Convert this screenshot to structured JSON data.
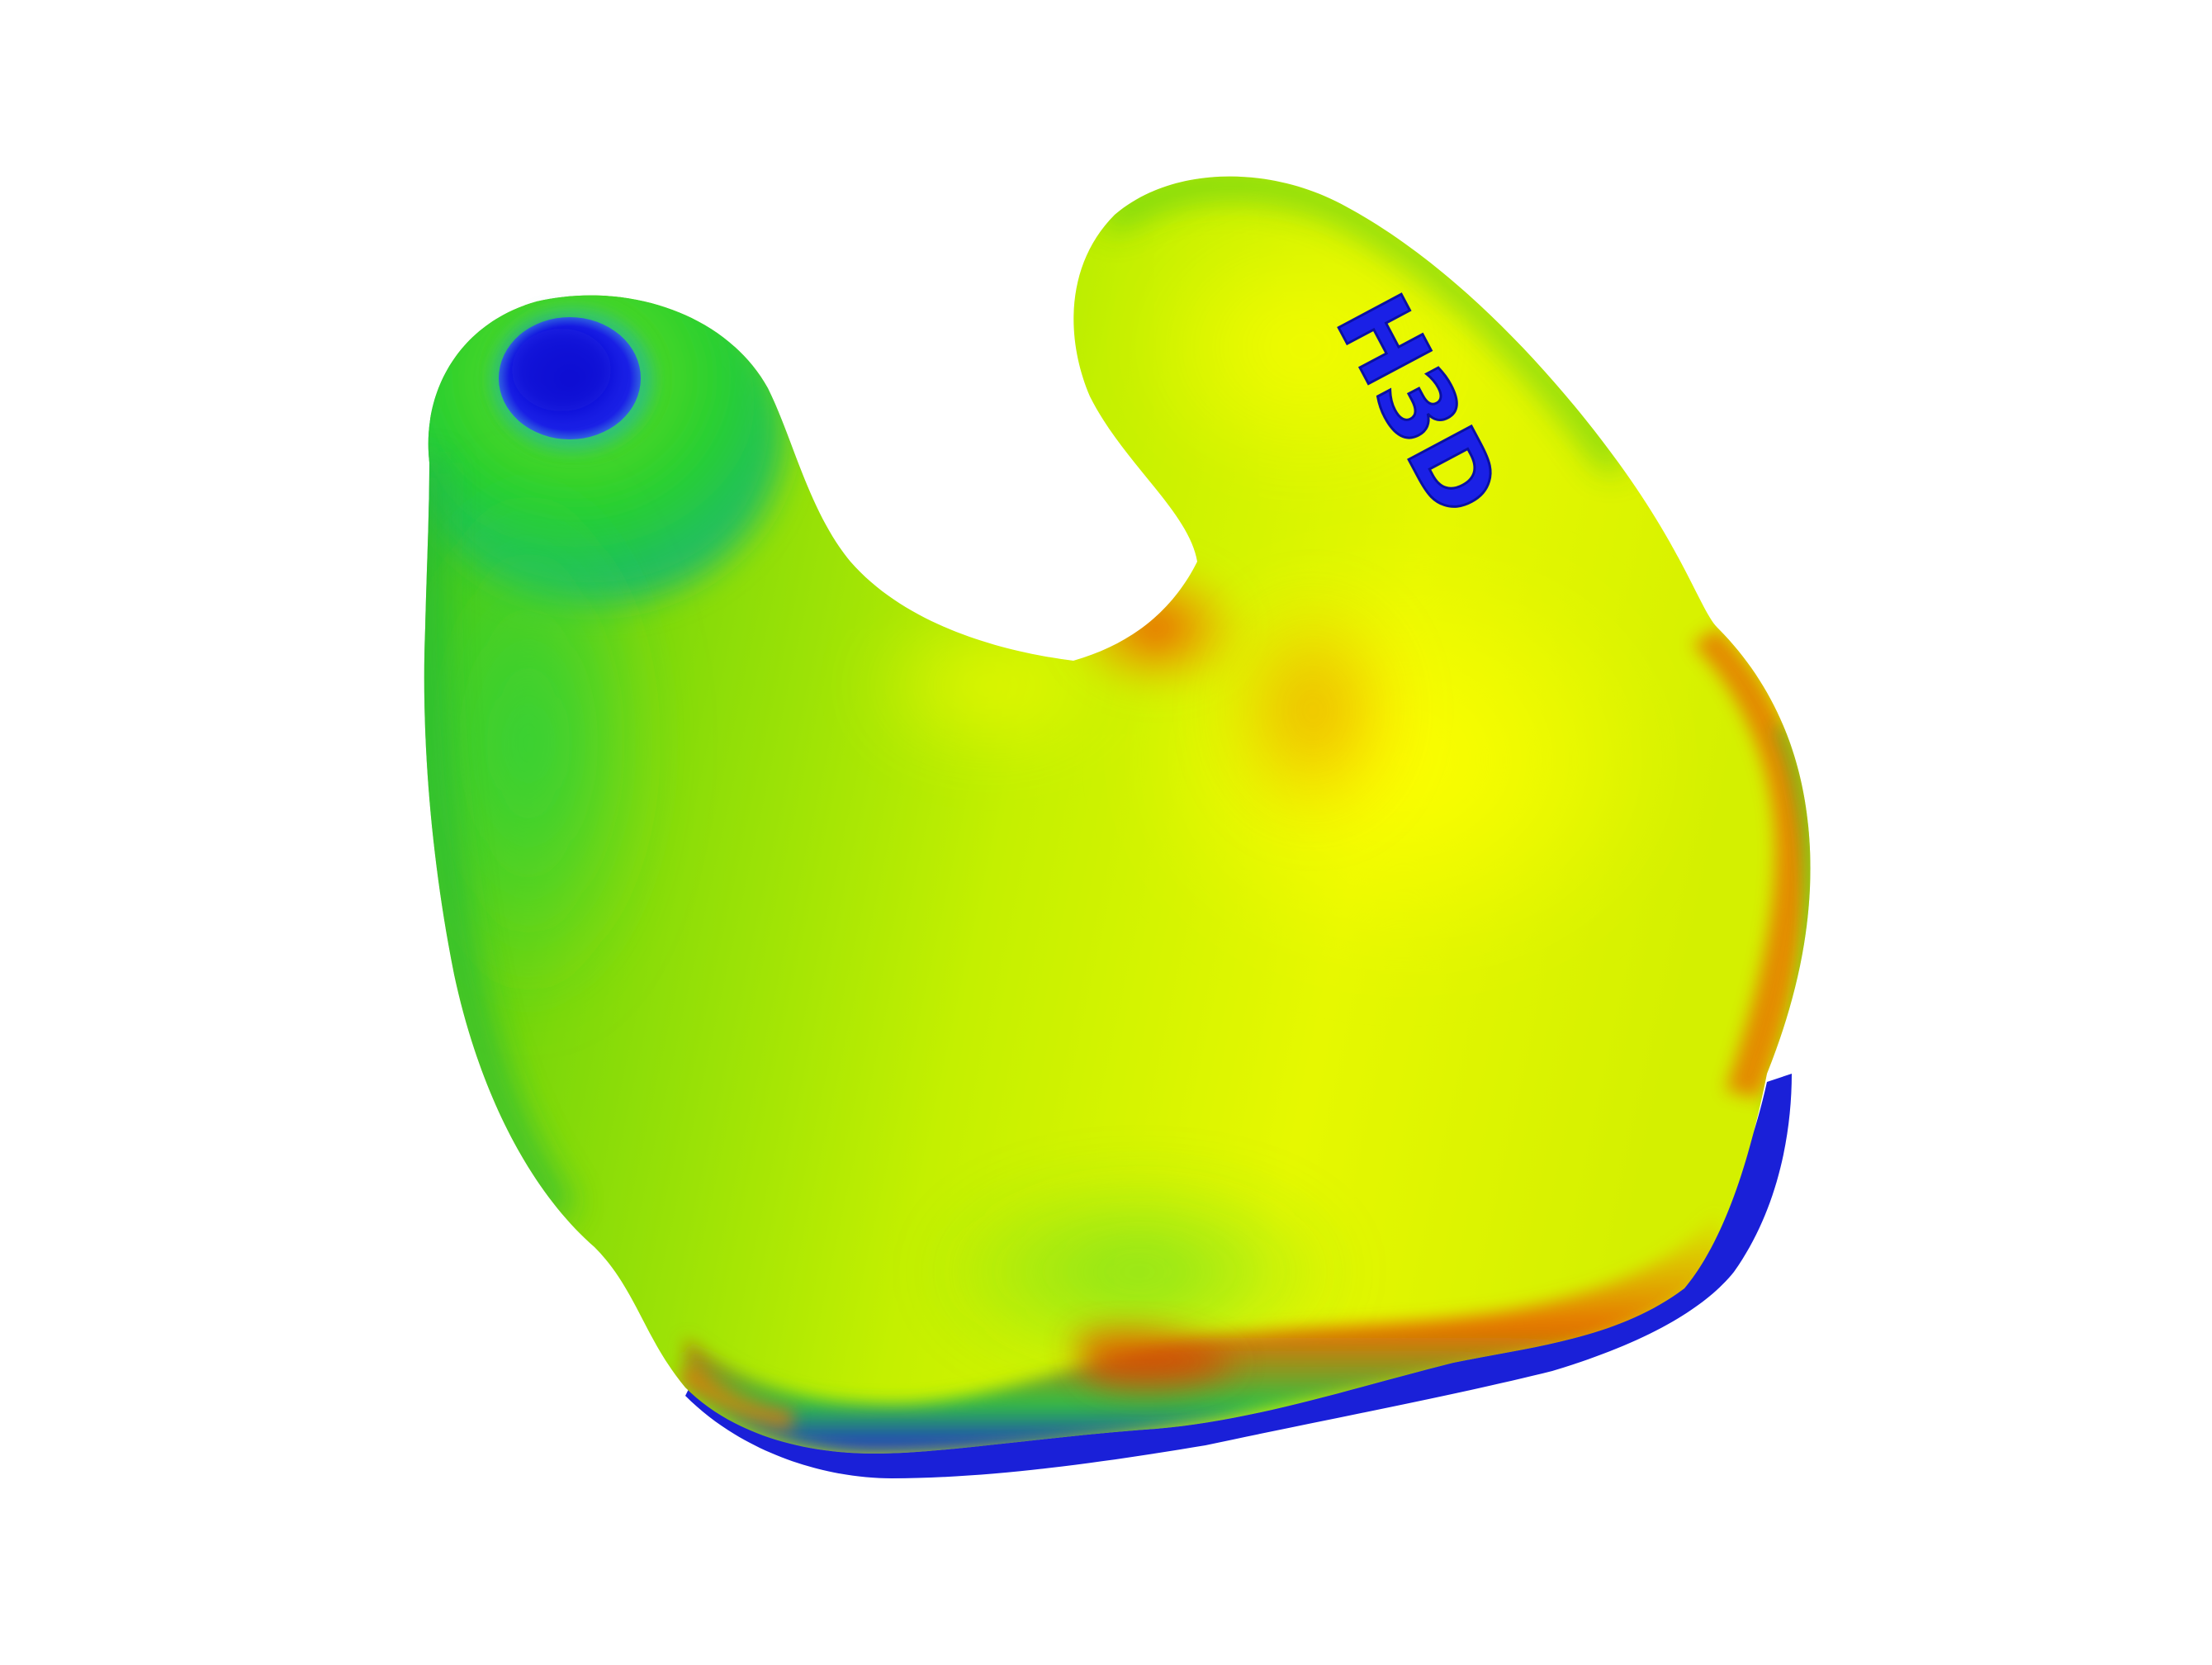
{
  "scene": {
    "surface_mark": "H3D",
    "colors": {
      "background": "#ffffff",
      "body_yellow_green": "#c8f000",
      "highlight_yellow": "#ffff00",
      "green": "#3ad21e",
      "orange": "#f07a00",
      "red_orange": "#e24a00",
      "blue": "#1a20e6",
      "deep_blue": "#0a10cc"
    },
    "icons": [
      "earmold-3d-heatmap"
    ]
  }
}
